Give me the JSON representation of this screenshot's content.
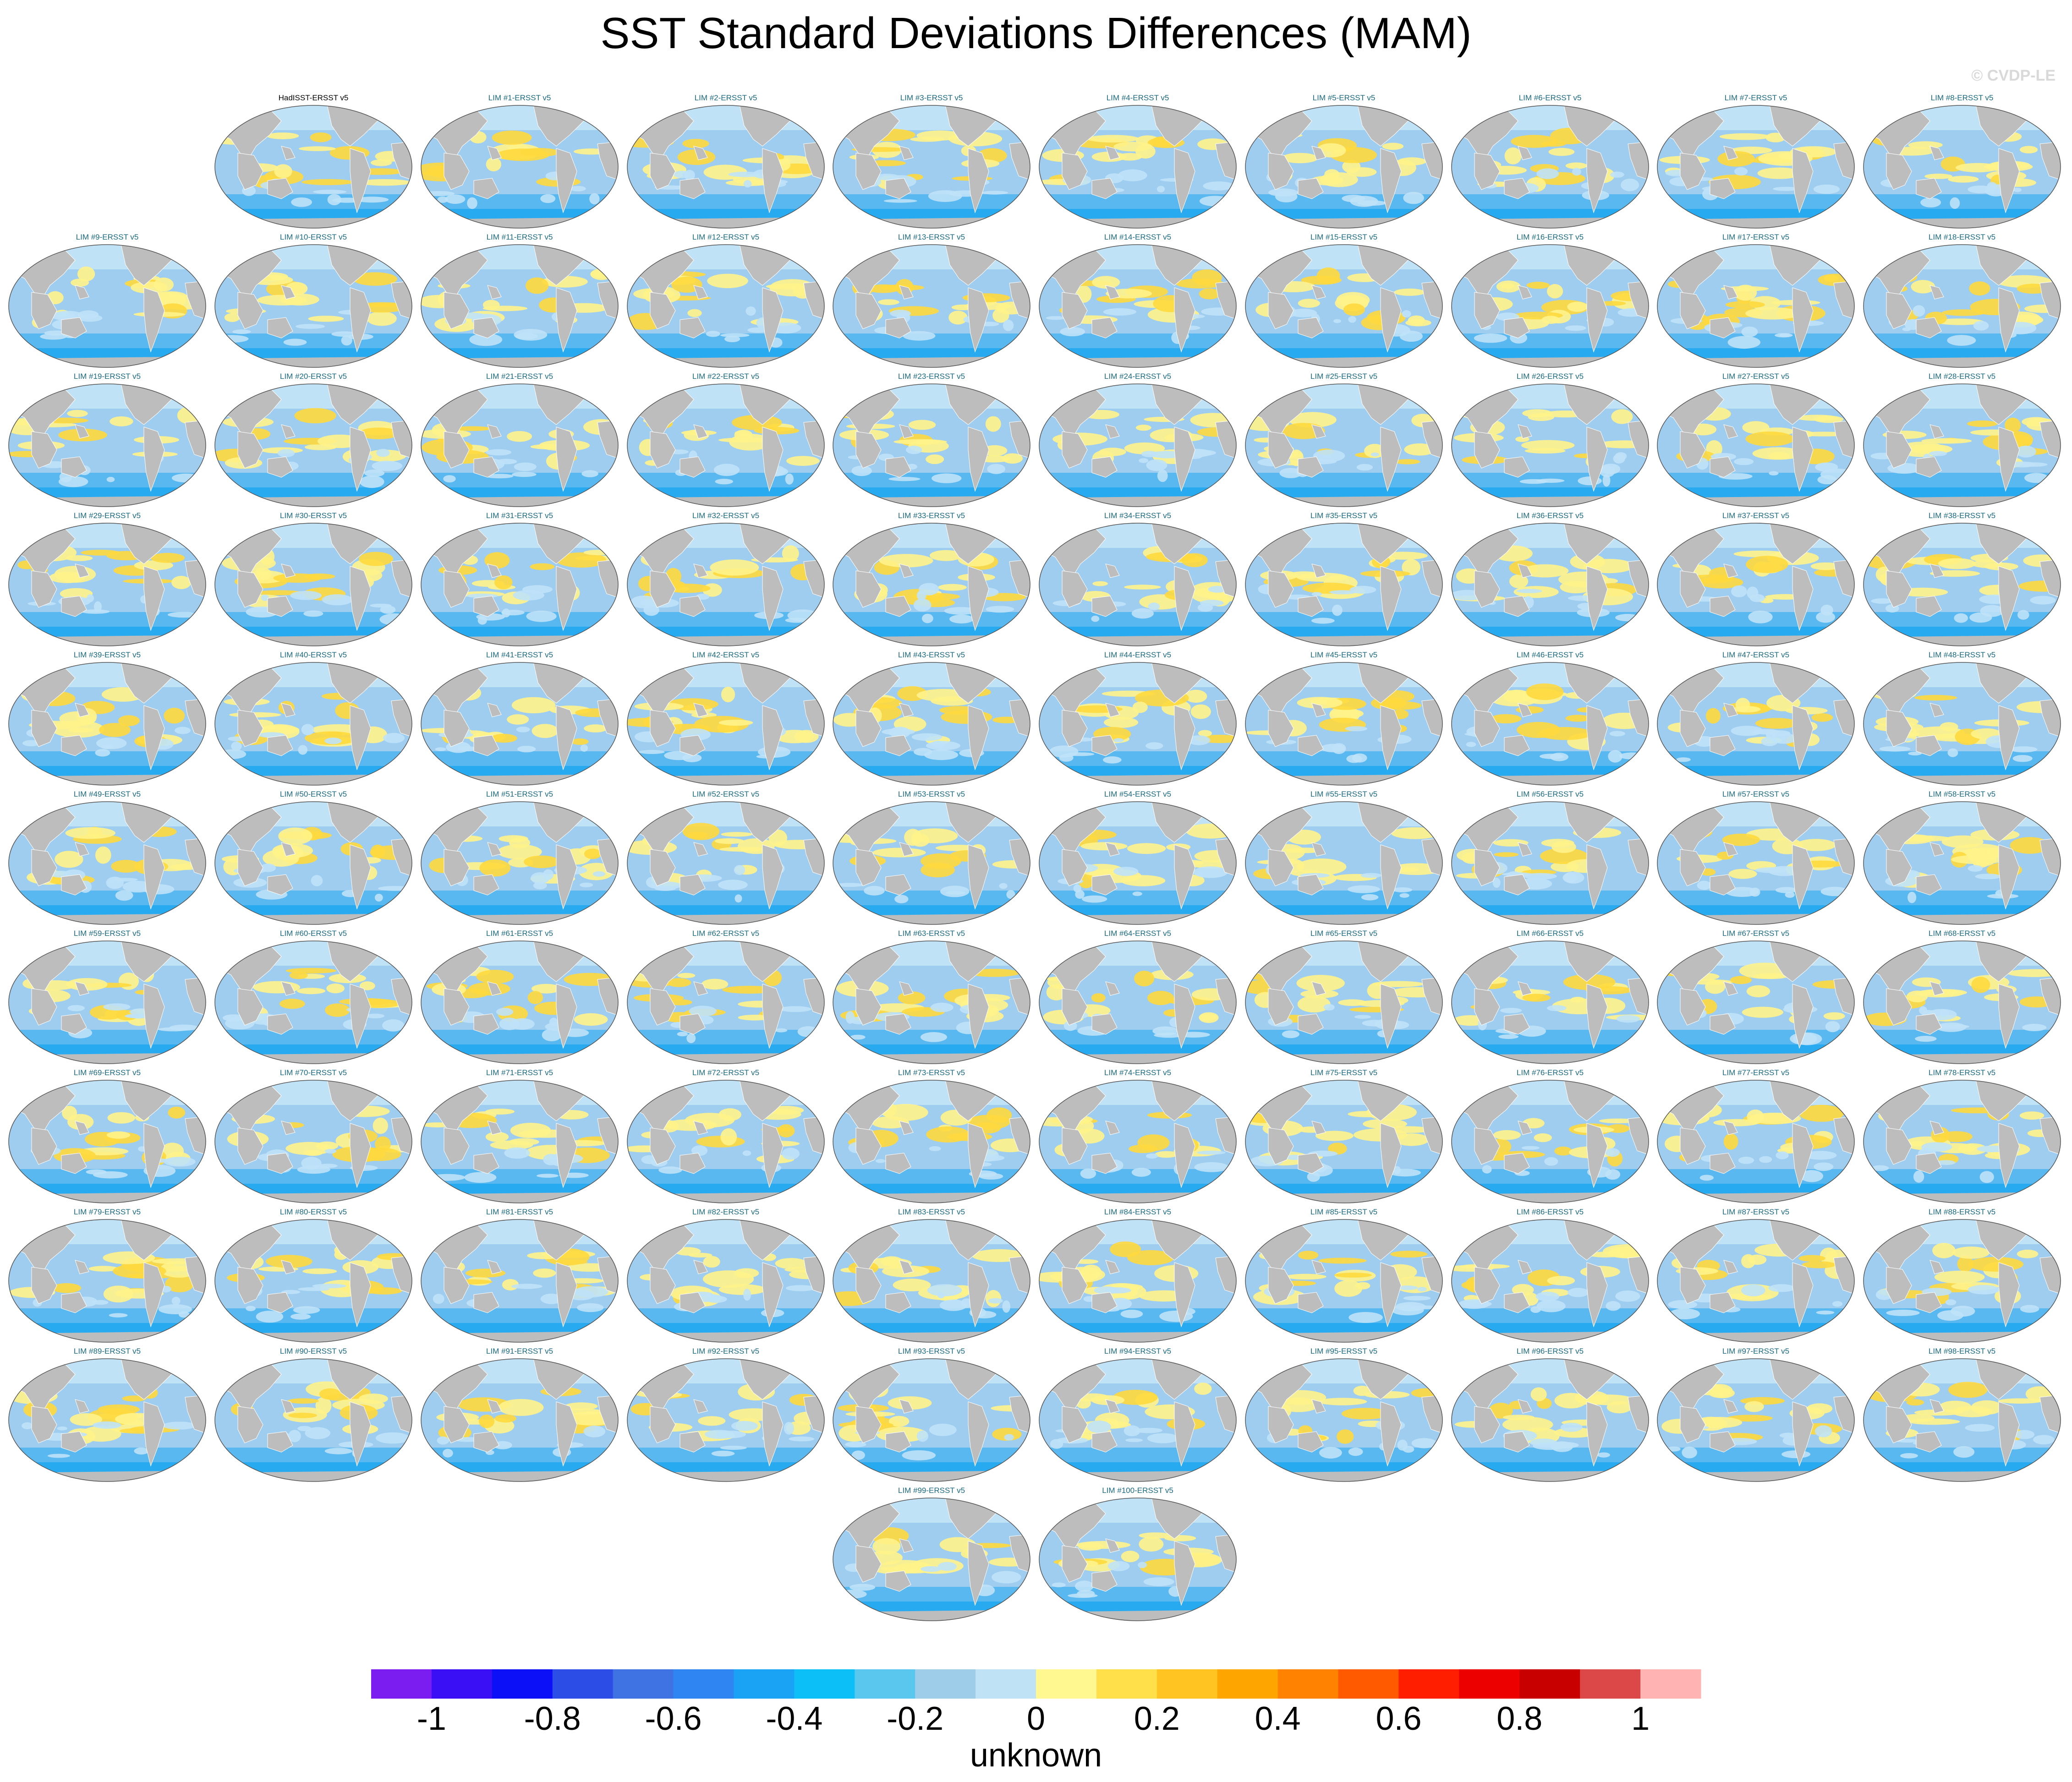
{
  "title": "SST Standard Deviations Differences (MAM)",
  "credit": "© CVDP-LE",
  "colors": {
    "land": "#bdbdbd",
    "ocean_neg": "#9ecdf0",
    "ocean_light": "#bfe2f7",
    "ocean_deep": "#1fa7ee",
    "ocean_pos": "#fff38a",
    "ocean_pos_strong": "#ffd93d",
    "title_text": "#1a6a80"
  },
  "chart_data": {
    "type": "heatmap",
    "layout": "map-grid",
    "projection": "robinson",
    "panels": [
      "HadISST-ERSST v5",
      "LIM #1-ERSST v5",
      "LIM #2-ERSST v5",
      "LIM #3-ERSST v5",
      "LIM #4-ERSST v5",
      "LIM #5-ERSST v5",
      "LIM #6-ERSST v5",
      "LIM #7-ERSST v5",
      "LIM #8-ERSST v5",
      "LIM #9-ERSST v5",
      "LIM #10-ERSST v5",
      "LIM #11-ERSST v5",
      "LIM #12-ERSST v5",
      "LIM #13-ERSST v5",
      "LIM #14-ERSST v5",
      "LIM #15-ERSST v5",
      "LIM #16-ERSST v5",
      "LIM #17-ERSST v5",
      "LIM #18-ERSST v5",
      "LIM #19-ERSST v5",
      "LIM #20-ERSST v5",
      "LIM #21-ERSST v5",
      "LIM #22-ERSST v5",
      "LIM #23-ERSST v5",
      "LIM #24-ERSST v5",
      "LIM #25-ERSST v5",
      "LIM #26-ERSST v5",
      "LIM #27-ERSST v5",
      "LIM #28-ERSST v5",
      "LIM #29-ERSST v5",
      "LIM #30-ERSST v5",
      "LIM #31-ERSST v5",
      "LIM #32-ERSST v5",
      "LIM #33-ERSST v5",
      "LIM #34-ERSST v5",
      "LIM #35-ERSST v5",
      "LIM #36-ERSST v5",
      "LIM #37-ERSST v5",
      "LIM #38-ERSST v5",
      "LIM #39-ERSST v5",
      "LIM #40-ERSST v5",
      "LIM #41-ERSST v5",
      "LIM #42-ERSST v5",
      "LIM #43-ERSST v5",
      "LIM #44-ERSST v5",
      "LIM #45-ERSST v5",
      "LIM #46-ERSST v5",
      "LIM #47-ERSST v5",
      "LIM #48-ERSST v5",
      "LIM #49-ERSST v5",
      "LIM #50-ERSST v5",
      "LIM #51-ERSST v5",
      "LIM #52-ERSST v5",
      "LIM #53-ERSST v5",
      "LIM #54-ERSST v5",
      "LIM #55-ERSST v5",
      "LIM #56-ERSST v5",
      "LIM #57-ERSST v5",
      "LIM #58-ERSST v5",
      "LIM #59-ERSST v5",
      "LIM #60-ERSST v5",
      "LIM #61-ERSST v5",
      "LIM #62-ERSST v5",
      "LIM #63-ERSST v5",
      "LIM #64-ERSST v5",
      "LIM #65-ERSST v5",
      "LIM #66-ERSST v5",
      "LIM #67-ERSST v5",
      "LIM #68-ERSST v5",
      "LIM #69-ERSST v5",
      "LIM #70-ERSST v5",
      "LIM #71-ERSST v5",
      "LIM #72-ERSST v5",
      "LIM #73-ERSST v5",
      "LIM #74-ERSST v5",
      "LIM #75-ERSST v5",
      "LIM #76-ERSST v5",
      "LIM #77-ERSST v5",
      "LIM #78-ERSST v5",
      "LIM #79-ERSST v5",
      "LIM #80-ERSST v5",
      "LIM #81-ERSST v5",
      "LIM #82-ERSST v5",
      "LIM #83-ERSST v5",
      "LIM #84-ERSST v5",
      "LIM #85-ERSST v5",
      "LIM #86-ERSST v5",
      "LIM #87-ERSST v5",
      "LIM #88-ERSST v5",
      "LIM #89-ERSST v5",
      "LIM #90-ERSST v5",
      "LIM #91-ERSST v5",
      "LIM #92-ERSST v5",
      "LIM #93-ERSST v5",
      "LIM #94-ERSST v5",
      "LIM #95-ERSST v5",
      "LIM #96-ERSST v5",
      "LIM #97-ERSST v5",
      "LIM #98-ERSST v5",
      "LIM #99-ERSST v5",
      "LIM #100-ERSST v5"
    ],
    "colorbar": {
      "label": "unknown",
      "ticks": [
        "-1",
        "-0.8",
        "-0.6",
        "-0.4",
        "-0.2",
        "0",
        "0.2",
        "0.4",
        "0.6",
        "0.8",
        "1"
      ],
      "tick_values": [
        -1,
        -0.8,
        -0.6,
        -0.4,
        -0.2,
        0,
        0.2,
        0.4,
        0.6,
        0.8,
        1
      ],
      "range": [
        -1.1,
        1.1
      ],
      "bins": 22,
      "colors": [
        "#7b1cf0",
        "#3a0ff5",
        "#0c10f7",
        "#2c4ee6",
        "#3f73e3",
        "#2f86f2",
        "#1aa2f4",
        "#0cbff6",
        "#5ac7ef",
        "#9ecdea",
        "#bfe2f5",
        "#fff78f",
        "#ffe04a",
        "#ffc421",
        "#ffa500",
        "#ff8200",
        "#ff5a00",
        "#ff1e00",
        "#ec0000",
        "#c80000",
        "#dc4848",
        "#ffb3b3"
      ]
    }
  }
}
